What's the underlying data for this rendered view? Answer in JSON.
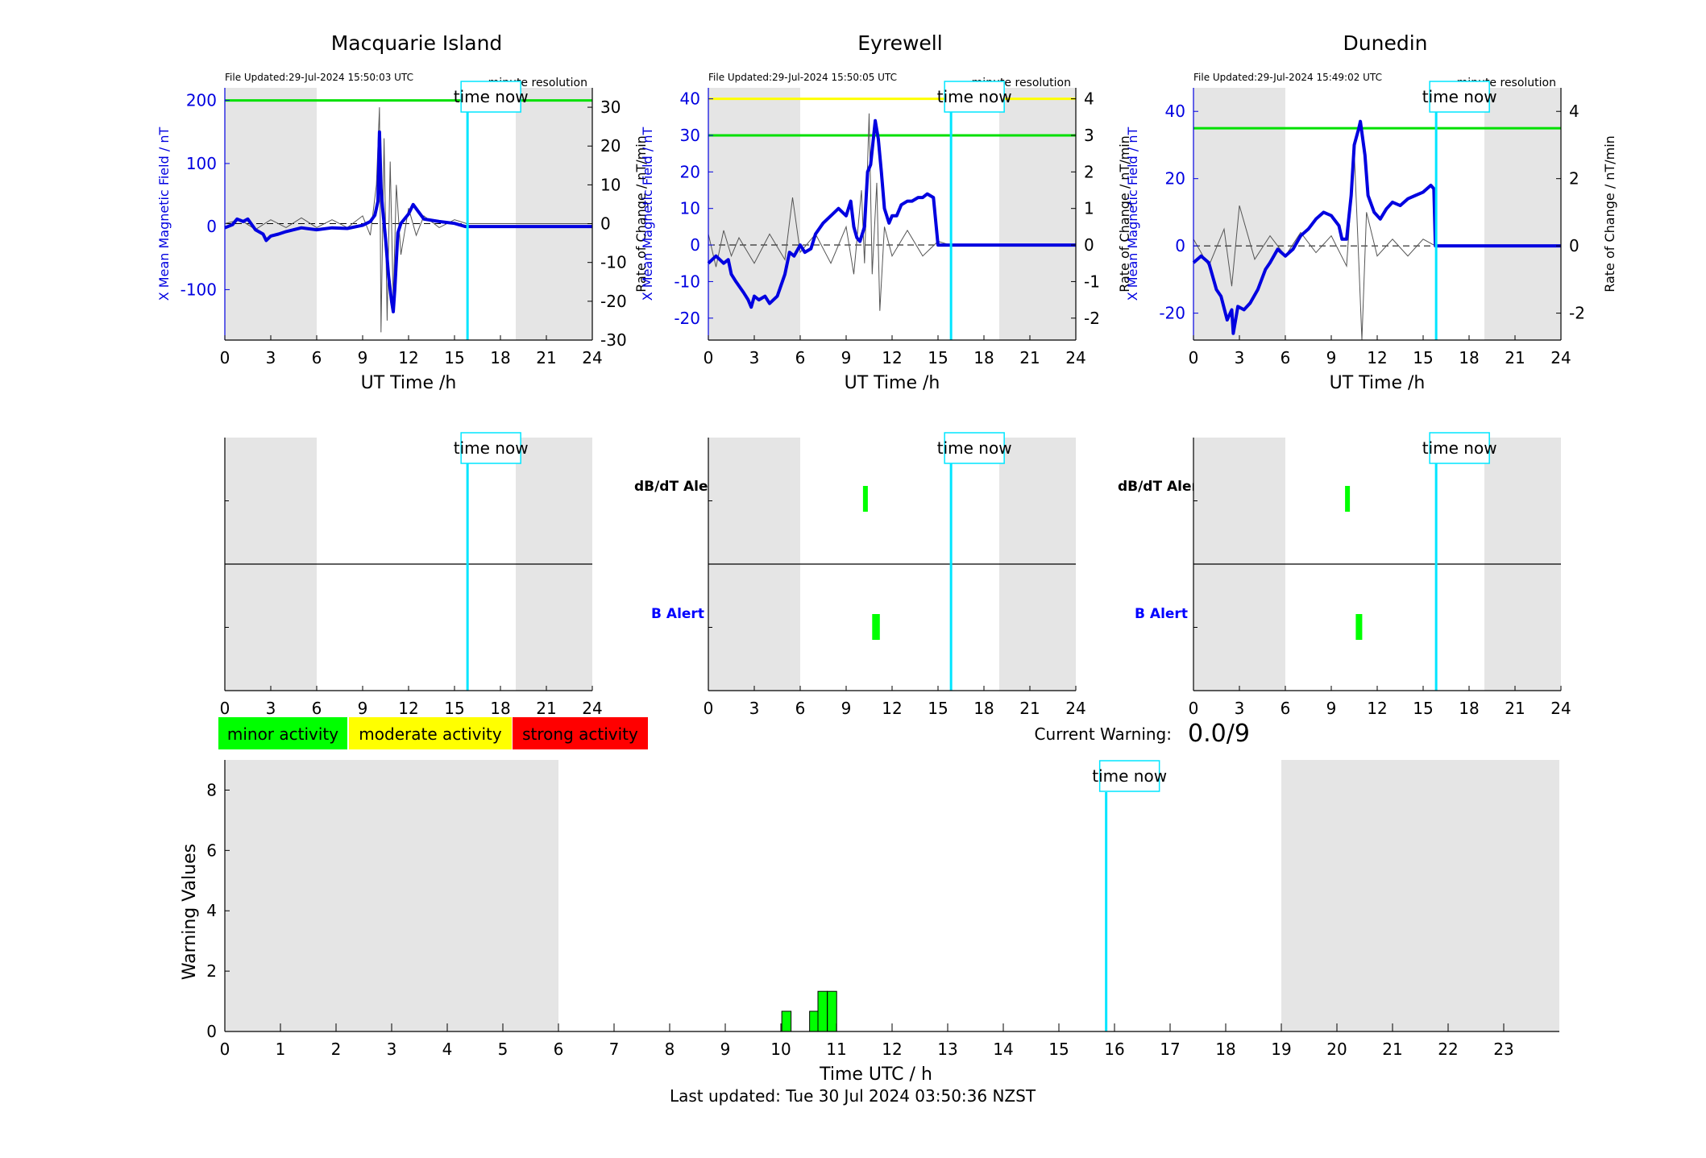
{
  "stations": [
    {
      "name": "Macquarie Island",
      "file_updated": "File Updated:29-Jul-2024 15:50:03 UTC",
      "resolution": "minute resolution",
      "ylabel_left": "X Mean Magnetic Field / nT",
      "ylabel_right": "Rate of Change / nT/min",
      "xlabel": "UT Time /h",
      "left_ylim": [
        -180,
        220
      ],
      "left_ticks": [
        -100,
        0,
        100,
        200
      ],
      "right_ylim": [
        -30,
        35
      ],
      "right_ticks": [
        -30,
        -20,
        -10,
        0,
        10,
        20,
        30
      ],
      "thresholds": [
        {
          "value": 200,
          "color": "#00e000"
        }
      ],
      "field_series": [
        [
          0,
          -2
        ],
        [
          0.5,
          3
        ],
        [
          0.8,
          12
        ],
        [
          1.2,
          8
        ],
        [
          1.5,
          12
        ],
        [
          2.0,
          -5
        ],
        [
          2.5,
          -12
        ],
        [
          2.7,
          -22
        ],
        [
          3.0,
          -15
        ],
        [
          3.5,
          -12
        ],
        [
          4.0,
          -8
        ],
        [
          5.0,
          -2
        ],
        [
          6.0,
          -5
        ],
        [
          7.0,
          -2
        ],
        [
          8.0,
          -3
        ],
        [
          9.0,
          2
        ],
        [
          9.5,
          8
        ],
        [
          9.8,
          18
        ],
        [
          10.0,
          40
        ],
        [
          10.1,
          150
        ],
        [
          10.2,
          60
        ],
        [
          10.3,
          30
        ],
        [
          10.5,
          -20
        ],
        [
          10.7,
          -80
        ],
        [
          10.9,
          -120
        ],
        [
          11.0,
          -135
        ],
        [
          11.1,
          -100
        ],
        [
          11.3,
          -10
        ],
        [
          11.5,
          5
        ],
        [
          12.0,
          20
        ],
        [
          12.3,
          35
        ],
        [
          12.6,
          25
        ],
        [
          13.0,
          12
        ],
        [
          14.0,
          8
        ],
        [
          15.0,
          5
        ],
        [
          15.7,
          0
        ],
        [
          15.8,
          0
        ],
        [
          24,
          0
        ]
      ],
      "rate_series": [
        [
          0,
          0
        ],
        [
          1,
          1
        ],
        [
          2,
          -1.5
        ],
        [
          3,
          1
        ],
        [
          4,
          -1
        ],
        [
          5,
          1.5
        ],
        [
          6,
          -1
        ],
        [
          7,
          1
        ],
        [
          8,
          -1
        ],
        [
          9,
          2
        ],
        [
          9.5,
          -3
        ],
        [
          9.9,
          10
        ],
        [
          10.1,
          30
        ],
        [
          10.2,
          -28
        ],
        [
          10.4,
          22
        ],
        [
          10.6,
          -25
        ],
        [
          10.8,
          16
        ],
        [
          11.0,
          -20
        ],
        [
          11.2,
          10
        ],
        [
          11.5,
          -8
        ],
        [
          12,
          4
        ],
        [
          12.5,
          -3
        ],
        [
          13,
          2
        ],
        [
          14,
          -1
        ],
        [
          15,
          1
        ],
        [
          15.8,
          0
        ],
        [
          24,
          0
        ]
      ],
      "zero_marker": "0",
      "alert_dbdt_bars": [],
      "alert_b_bars": []
    },
    {
      "name": "Eyrewell",
      "file_updated": "File Updated:29-Jul-2024 15:50:05 UTC",
      "resolution": "minute resolution",
      "ylabel_left": "X Mean Magnetic Field / nT",
      "ylabel_right": "Rate of Change / nT/min",
      "xlabel": "UT Time /h",
      "left_ylim": [
        -26,
        43
      ],
      "left_ticks": [
        -20,
        -10,
        0,
        10,
        20,
        30,
        40
      ],
      "right_ylim": [
        -2.6,
        4.3
      ],
      "right_ticks": [
        -2,
        -1,
        0,
        1,
        2,
        3,
        4
      ],
      "thresholds": [
        {
          "value": 40,
          "color": "#ffff00"
        },
        {
          "value": 30,
          "color": "#00e000"
        }
      ],
      "field_series": [
        [
          0,
          -5
        ],
        [
          0.5,
          -3
        ],
        [
          1.0,
          -5
        ],
        [
          1.3,
          -4
        ],
        [
          1.5,
          -8
        ],
        [
          1.8,
          -10
        ],
        [
          2.3,
          -13
        ],
        [
          2.6,
          -15
        ],
        [
          2.8,
          -17
        ],
        [
          3.0,
          -14
        ],
        [
          3.3,
          -15
        ],
        [
          3.7,
          -14
        ],
        [
          4.0,
          -16
        ],
        [
          4.5,
          -14
        ],
        [
          5.0,
          -8
        ],
        [
          5.3,
          -2
        ],
        [
          5.6,
          -3
        ],
        [
          6.0,
          0
        ],
        [
          6.3,
          -2
        ],
        [
          6.7,
          -1
        ],
        [
          7.0,
          3
        ],
        [
          7.5,
          6
        ],
        [
          8.0,
          8
        ],
        [
          8.5,
          10
        ],
        [
          9.0,
          8
        ],
        [
          9.3,
          12
        ],
        [
          9.5,
          5
        ],
        [
          9.7,
          2
        ],
        [
          9.9,
          1
        ],
        [
          10.2,
          5
        ],
        [
          10.4,
          20
        ],
        [
          10.6,
          22
        ],
        [
          10.8,
          30
        ],
        [
          10.9,
          34
        ],
        [
          11.1,
          29
        ],
        [
          11.3,
          20
        ],
        [
          11.5,
          10
        ],
        [
          11.8,
          6
        ],
        [
          12.0,
          8
        ],
        [
          12.3,
          8
        ],
        [
          12.6,
          11
        ],
        [
          13.0,
          12
        ],
        [
          13.3,
          12
        ],
        [
          13.7,
          13
        ],
        [
          14.0,
          13
        ],
        [
          14.3,
          14
        ],
        [
          14.7,
          13
        ],
        [
          15.0,
          0
        ],
        [
          24,
          0
        ]
      ],
      "rate_series": [
        [
          0,
          0.3
        ],
        [
          0.5,
          -0.6
        ],
        [
          1,
          0.4
        ],
        [
          1.5,
          -0.3
        ],
        [
          2,
          0.2
        ],
        [
          3,
          -0.5
        ],
        [
          4,
          0.3
        ],
        [
          5,
          -0.4
        ],
        [
          5.5,
          1.3
        ],
        [
          6,
          -0.2
        ],
        [
          7,
          0.3
        ],
        [
          8,
          -0.5
        ],
        [
          9,
          0.5
        ],
        [
          9.5,
          -0.8
        ],
        [
          10.0,
          1.5
        ],
        [
          10.2,
          -0.5
        ],
        [
          10.5,
          3.6
        ],
        [
          10.7,
          -0.8
        ],
        [
          11.0,
          1.7
        ],
        [
          11.2,
          -1.8
        ],
        [
          11.5,
          0.5
        ],
        [
          12,
          -0.3
        ],
        [
          13,
          0.4
        ],
        [
          14,
          -0.3
        ],
        [
          15,
          0.1
        ],
        [
          15.8,
          0
        ],
        [
          24,
          0
        ]
      ],
      "zero_marker": "0",
      "alert_dbdt_bars": [
        [
          10.1,
          10.4
        ]
      ],
      "alert_b_bars": [
        [
          10.7,
          11.2
        ]
      ]
    },
    {
      "name": "Dunedin",
      "file_updated": "File Updated:29-Jul-2024 15:49:02 UTC",
      "resolution": "minute resolution",
      "ylabel_left": "X Mean Magnetic Field / nT",
      "ylabel_right": "Rate of Change / nT/min",
      "xlabel": "UT Time /h",
      "left_ylim": [
        -28,
        47
      ],
      "left_ticks": [
        -20,
        0,
        20,
        40
      ],
      "right_ylim": [
        -2.8,
        4.7
      ],
      "right_ticks": [
        -2,
        0,
        2,
        4
      ],
      "thresholds": [
        {
          "value": 35,
          "color": "#00e000"
        }
      ],
      "field_series": [
        [
          0,
          -5
        ],
        [
          0.5,
          -3
        ],
        [
          1.0,
          -5
        ],
        [
          1.5,
          -13
        ],
        [
          1.8,
          -15
        ],
        [
          2.2,
          -22
        ],
        [
          2.5,
          -19
        ],
        [
          2.6,
          -26
        ],
        [
          2.9,
          -18
        ],
        [
          3.3,
          -19
        ],
        [
          3.7,
          -17
        ],
        [
          4.2,
          -13
        ],
        [
          4.7,
          -7
        ],
        [
          5.0,
          -5
        ],
        [
          5.5,
          -1
        ],
        [
          6.0,
          -3
        ],
        [
          6.5,
          -1
        ],
        [
          7.0,
          3
        ],
        [
          7.5,
          5
        ],
        [
          8.0,
          8
        ],
        [
          8.5,
          10
        ],
        [
          9.0,
          9
        ],
        [
          9.5,
          6
        ],
        [
          9.7,
          2
        ],
        [
          10.0,
          2
        ],
        [
          10.3,
          15
        ],
        [
          10.5,
          30
        ],
        [
          10.8,
          35
        ],
        [
          10.9,
          37
        ],
        [
          11.2,
          27
        ],
        [
          11.4,
          15
        ],
        [
          11.8,
          10
        ],
        [
          12.2,
          8
        ],
        [
          12.6,
          11
        ],
        [
          13.0,
          13
        ],
        [
          13.5,
          12
        ],
        [
          14.0,
          14
        ],
        [
          14.5,
          15
        ],
        [
          15.0,
          16
        ],
        [
          15.5,
          18
        ],
        [
          15.7,
          17
        ],
        [
          15.8,
          0
        ],
        [
          24,
          0
        ]
      ],
      "rate_series": [
        [
          0,
          0.2
        ],
        [
          1,
          -0.6
        ],
        [
          2,
          0.5
        ],
        [
          2.5,
          -1.2
        ],
        [
          3,
          1.2
        ],
        [
          4,
          -0.4
        ],
        [
          5,
          0.3
        ],
        [
          6,
          -0.3
        ],
        [
          7,
          0.4
        ],
        [
          8,
          -0.2
        ],
        [
          9,
          0.3
        ],
        [
          10,
          -0.6
        ],
        [
          10.5,
          2.8
        ],
        [
          10.8,
          -0.5
        ],
        [
          11.0,
          -2.8
        ],
        [
          11.3,
          1.0
        ],
        [
          12,
          -0.3
        ],
        [
          13,
          0.2
        ],
        [
          14,
          -0.3
        ],
        [
          15,
          0.2
        ],
        [
          15.8,
          0
        ],
        [
          24,
          0
        ]
      ],
      "zero_marker": "0",
      "alert_dbdt_bars": [
        [
          9.9,
          10.2
        ]
      ],
      "alert_b_bars": [
        [
          10.6,
          11.0
        ]
      ]
    }
  ],
  "time_now_label": "time now",
  "time_now_hour": 15.85,
  "night_ranges": [
    [
      0,
      6
    ],
    [
      19,
      24
    ]
  ],
  "alert_labels": {
    "dbdt": "dB/dT Alert",
    "b": "B Alert"
  },
  "x_ticks_station": [
    0,
    3,
    6,
    9,
    12,
    15,
    18,
    21,
    24
  ],
  "legend": [
    {
      "label": "minor activity",
      "color": "#00ff00"
    },
    {
      "label": "moderate activity",
      "color": "#ffff00"
    },
    {
      "label": "strong activity",
      "color": "#ff0000"
    }
  ],
  "current_warning": {
    "label": "Current Warning:",
    "value": "0.0/9"
  },
  "chart_data": {
    "type": "bar",
    "ylabel": "Warning Values",
    "xlabel": "Time UTC / h",
    "ylim": [
      0,
      9
    ],
    "yticks": [
      0,
      2,
      4,
      6,
      8
    ],
    "xticks": [
      0,
      1,
      2,
      3,
      4,
      5,
      6,
      7,
      8,
      9,
      10,
      11,
      12,
      13,
      14,
      15,
      16,
      17,
      18,
      19,
      20,
      21,
      22,
      23
    ],
    "xlim": [
      0,
      24
    ],
    "bars": [
      {
        "x": 10.1,
        "value": 0.67
      },
      {
        "x": 10.6,
        "value": 0.67
      },
      {
        "x": 10.75,
        "value": 1.33
      },
      {
        "x": 10.92,
        "value": 1.33
      }
    ],
    "bar_color": "#00ff00"
  },
  "footer": "Last updated: Tue 30 Jul 2024 03:50:36 NZST"
}
